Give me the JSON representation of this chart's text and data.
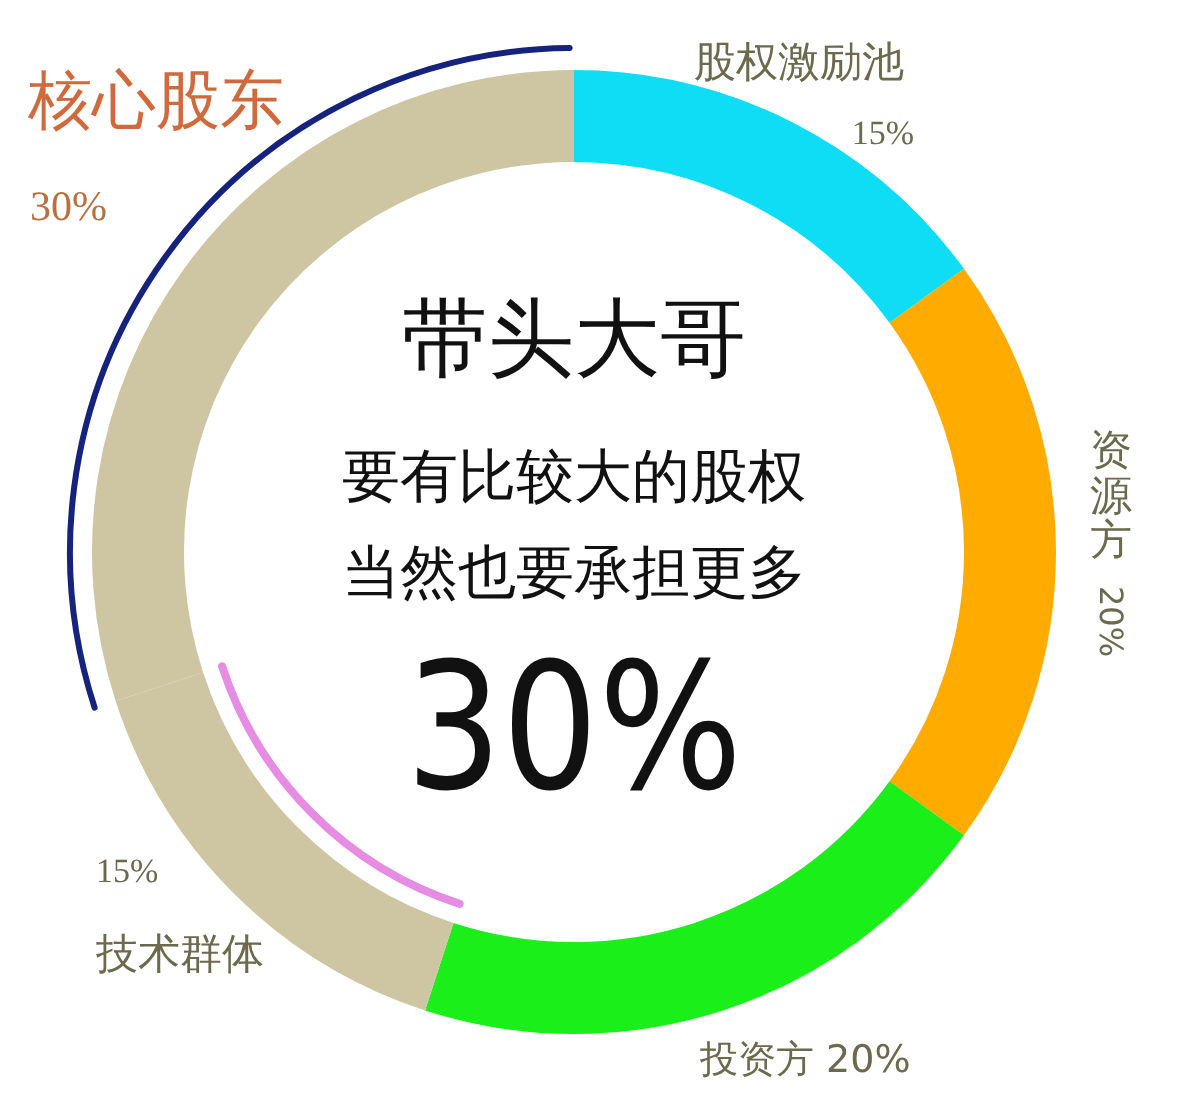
{
  "chart_data": {
    "type": "donut",
    "title": "带头大哥",
    "annotations": [
      "要有比较大的股权",
      "当然也要承担更多",
      "30%"
    ],
    "categories": [
      "股权激励池",
      "资源方",
      "投资方",
      "技术群体",
      "核心股东"
    ],
    "values": [
      15,
      20,
      20,
      15,
      30
    ],
    "colors": [
      "#0fdcf5",
      "#ffab00",
      "#1aef1a",
      "#cec6a2",
      "#cec6a2"
    ],
    "value_labels": [
      "15%",
      "20%",
      "20%",
      "15%",
      "30%"
    ]
  }
}
